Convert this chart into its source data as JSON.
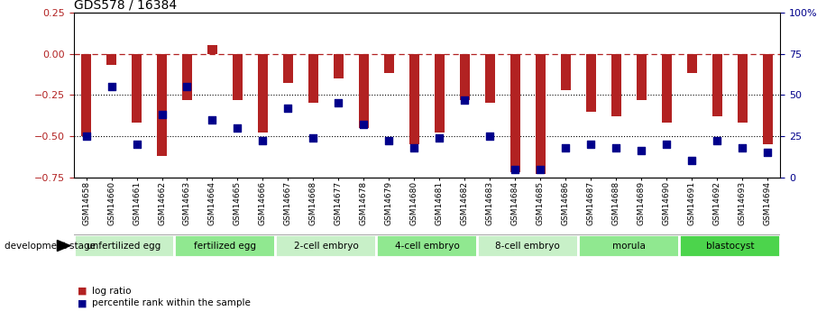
{
  "title": "GDS578 / 16384",
  "samples": [
    "GSM14658",
    "GSM14660",
    "GSM14661",
    "GSM14662",
    "GSM14663",
    "GSM14664",
    "GSM14665",
    "GSM14666",
    "GSM14667",
    "GSM14668",
    "GSM14677",
    "GSM14678",
    "GSM14679",
    "GSM14680",
    "GSM14681",
    "GSM14682",
    "GSM14683",
    "GSM14684",
    "GSM14685",
    "GSM14686",
    "GSM14687",
    "GSM14688",
    "GSM14689",
    "GSM14690",
    "GSM14691",
    "GSM14692",
    "GSM14693",
    "GSM14694"
  ],
  "log_ratio": [
    -0.5,
    -0.07,
    -0.42,
    -0.62,
    -0.28,
    0.05,
    -0.28,
    -0.48,
    -0.18,
    -0.3,
    -0.15,
    -0.45,
    -0.12,
    -0.55,
    -0.48,
    -0.28,
    -0.3,
    -0.72,
    -0.73,
    -0.22,
    -0.35,
    -0.38,
    -0.28,
    -0.42,
    -0.12,
    -0.38,
    -0.42,
    -0.55
  ],
  "percentile": [
    25,
    55,
    20,
    38,
    55,
    35,
    30,
    22,
    42,
    24,
    45,
    32,
    22,
    18,
    24,
    47,
    25,
    5,
    5,
    18,
    20,
    18,
    16,
    20,
    10,
    22,
    18,
    15
  ],
  "stages": [
    {
      "label": "unfertilized egg",
      "start": 0,
      "end": 4,
      "color": "#c8f0c8"
    },
    {
      "label": "fertilized egg",
      "start": 4,
      "end": 8,
      "color": "#90e890"
    },
    {
      "label": "2-cell embryo",
      "start": 8,
      "end": 12,
      "color": "#c8f0c8"
    },
    {
      "label": "4-cell embryo",
      "start": 12,
      "end": 16,
      "color": "#90e890"
    },
    {
      "label": "8-cell embryo",
      "start": 16,
      "end": 20,
      "color": "#c8f0c8"
    },
    {
      "label": "morula",
      "start": 20,
      "end": 24,
      "color": "#90e890"
    },
    {
      "label": "blastocyst",
      "start": 24,
      "end": 28,
      "color": "#4cd44c"
    }
  ],
  "bar_color": "#b22222",
  "dot_color": "#00008b",
  "ylim_left": [
    -0.75,
    0.25
  ],
  "ylim_right": [
    0,
    100
  ],
  "yticks_left": [
    0.25,
    0.0,
    -0.25,
    -0.5,
    -0.75
  ],
  "yticks_right": [
    100,
    75,
    50,
    25,
    0
  ],
  "hline_y": 0.0,
  "dotted_lines": [
    -0.25,
    -0.5
  ],
  "bar_width": 0.4,
  "dot_size": 40,
  "title_fontsize": 10
}
